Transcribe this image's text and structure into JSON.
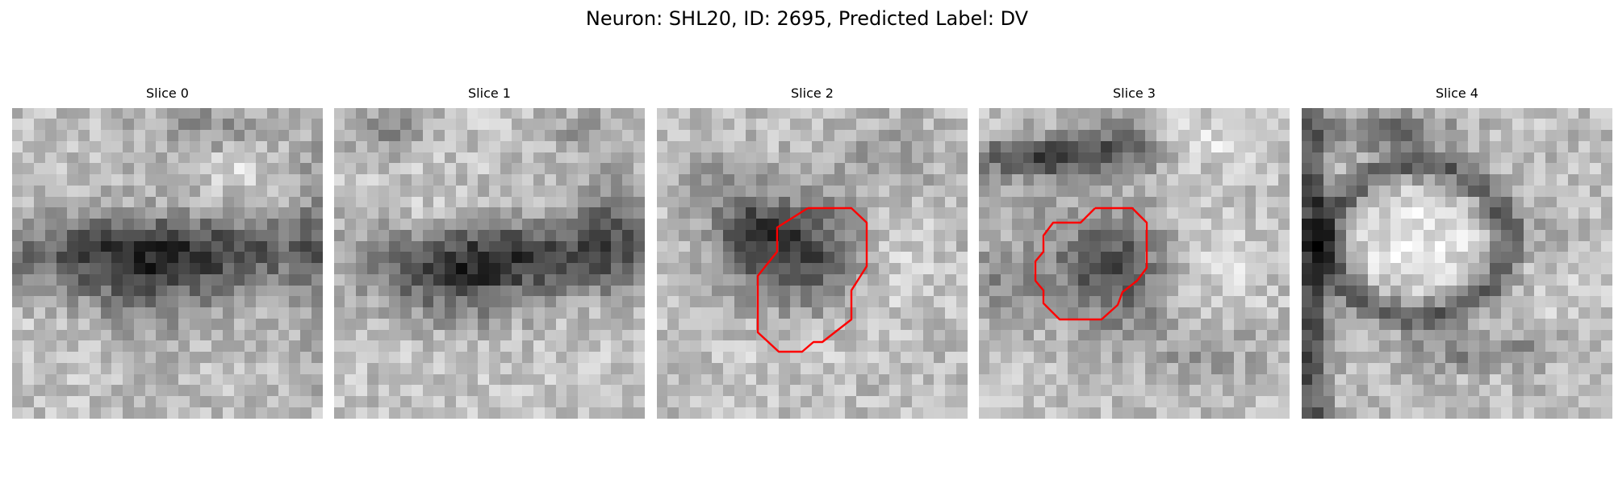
{
  "figure": {
    "title": "Neuron: SHL20, ID: 2695, Predicted Label: DV"
  },
  "contour_color": "#ff0000",
  "slices": [
    {
      "title": "Slice 0",
      "has_contour": false
    },
    {
      "title": "Slice 1",
      "has_contour": false
    },
    {
      "title": "Slice 2",
      "has_contour": true
    },
    {
      "title": "Slice 3",
      "has_contour": true
    },
    {
      "title": "Slice 4",
      "has_contour": false
    }
  ]
}
